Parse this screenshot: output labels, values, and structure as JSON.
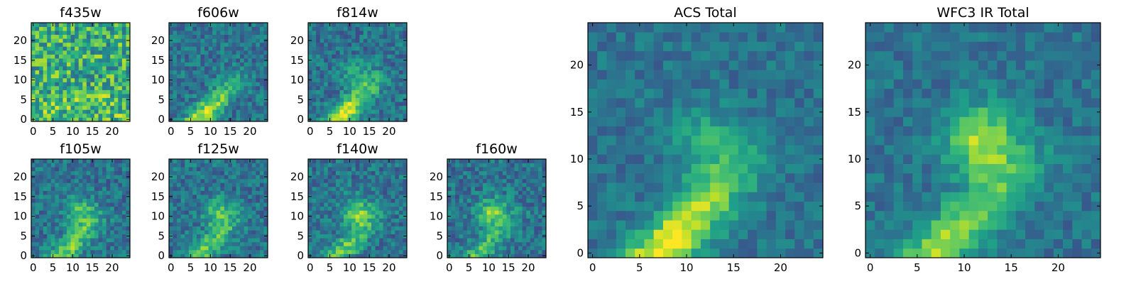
{
  "chart_data": [
    {
      "type": "heatmap",
      "title": "f435w",
      "xlim": [
        0,
        24
      ],
      "ylim": [
        0,
        24
      ],
      "xticks": [
        0,
        5,
        10,
        15,
        20
      ],
      "yticks": [
        0,
        5,
        10,
        15,
        20
      ],
      "colormap": "viridis",
      "image": "noise",
      "blobs": [],
      "ridge": 0
    },
    {
      "type": "heatmap",
      "title": "f606w",
      "xlim": [
        0,
        24
      ],
      "ylim": [
        0,
        24
      ],
      "xticks": [
        0,
        5,
        10,
        15,
        20
      ],
      "yticks": [
        0,
        5,
        10,
        15,
        20
      ],
      "colormap": "viridis",
      "image": "arc",
      "blobs": [],
      "ridge": 0.85
    },
    {
      "type": "heatmap",
      "title": "f814w",
      "xlim": [
        0,
        24
      ],
      "ylim": [
        0,
        24
      ],
      "xticks": [
        0,
        5,
        10,
        15,
        20
      ],
      "yticks": [
        0,
        5,
        10,
        15,
        20
      ],
      "colormap": "viridis",
      "image": "arc",
      "blobs": [
        {
          "x": 12,
          "y": 11,
          "amp": 0.35
        }
      ],
      "ridge": 0.95
    },
    {
      "type": "heatmap",
      "title": "f105w",
      "xlim": [
        0,
        24
      ],
      "ylim": [
        0,
        24
      ],
      "xticks": [
        0,
        5,
        10,
        15,
        20
      ],
      "yticks": [
        0,
        5,
        10,
        15,
        20
      ],
      "colormap": "viridis",
      "image": "blob+arc",
      "blobs": [
        {
          "x": 12,
          "y": 11,
          "amp": 0.55
        }
      ],
      "ridge": 0.7
    },
    {
      "type": "heatmap",
      "title": "f125w",
      "xlim": [
        0,
        24
      ],
      "ylim": [
        0,
        24
      ],
      "xticks": [
        0,
        5,
        10,
        15,
        20
      ],
      "yticks": [
        0,
        5,
        10,
        15,
        20
      ],
      "colormap": "viridis",
      "image": "blob+arc",
      "blobs": [
        {
          "x": 12,
          "y": 11,
          "amp": 0.6
        }
      ],
      "ridge": 0.6
    },
    {
      "type": "heatmap",
      "title": "f140w",
      "xlim": [
        0,
        24
      ],
      "ylim": [
        0,
        24
      ],
      "xticks": [
        0,
        5,
        10,
        15,
        20
      ],
      "yticks": [
        0,
        5,
        10,
        15,
        20
      ],
      "colormap": "viridis",
      "image": "blob+arc",
      "blobs": [
        {
          "x": 12,
          "y": 11,
          "amp": 0.65
        }
      ],
      "ridge": 0.6
    },
    {
      "type": "heatmap",
      "title": "f160w",
      "xlim": [
        0,
        24
      ],
      "ylim": [
        0,
        24
      ],
      "xticks": [
        0,
        5,
        10,
        15,
        20
      ],
      "yticks": [
        0,
        5,
        10,
        15,
        20
      ],
      "colormap": "viridis",
      "image": "blob+arc",
      "blobs": [
        {
          "x": 11,
          "y": 11,
          "amp": 0.7
        }
      ],
      "ridge": 0.55
    },
    {
      "type": "heatmap",
      "title": "ACS Total",
      "xlim": [
        0,
        24
      ],
      "ylim": [
        0,
        24
      ],
      "xticks": [
        0,
        5,
        10,
        15,
        20
      ],
      "yticks": [
        0,
        5,
        10,
        15,
        20
      ],
      "colormap": "viridis",
      "image": "arc",
      "blobs": [
        {
          "x": 12,
          "y": 12,
          "amp": 0.4
        }
      ],
      "ridge": 1.0
    },
    {
      "type": "heatmap",
      "title": "WFC3 IR Total",
      "xlim": [
        0,
        24
      ],
      "ylim": [
        0,
        24
      ],
      "xticks": [
        0,
        5,
        10,
        15,
        20
      ],
      "yticks": [
        0,
        5,
        10,
        15,
        20
      ],
      "colormap": "viridis",
      "image": "blob+arc",
      "blobs": [
        {
          "x": 12,
          "y": 12,
          "amp": 0.85
        }
      ],
      "ridge": 0.8
    }
  ],
  "colors": {
    "background": "#ffffff",
    "axes": "#000000",
    "viridis_low": "#440154",
    "viridis_high": "#fde725"
  }
}
